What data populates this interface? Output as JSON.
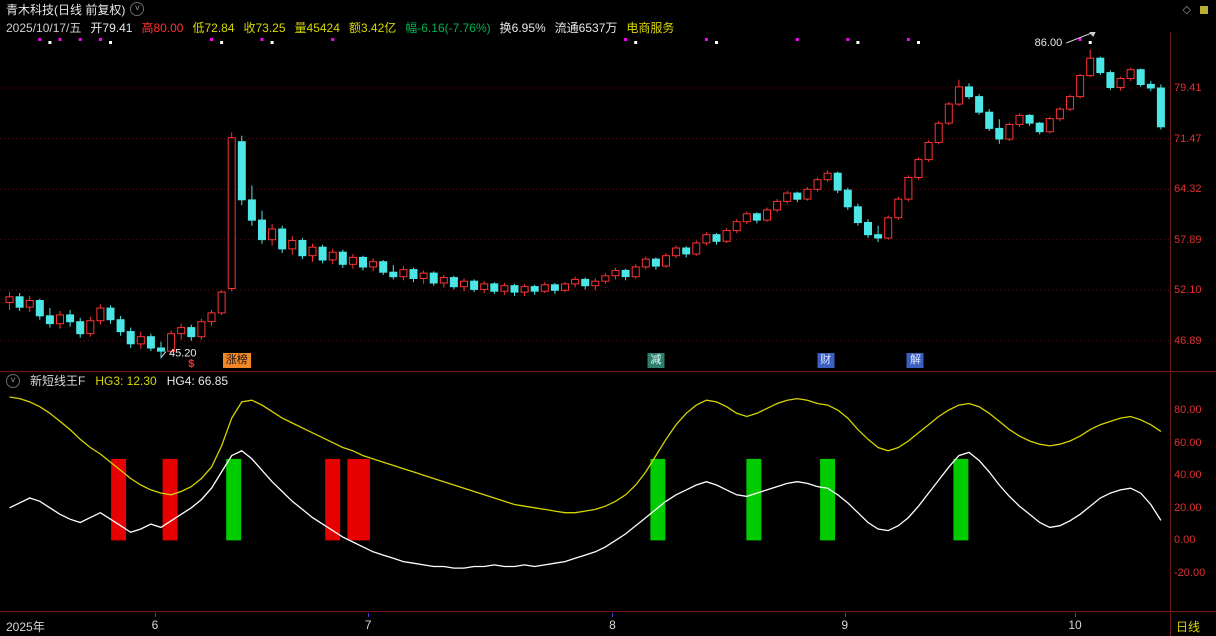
{
  "titlebar": {
    "title": "青木科技(日线 前复权)",
    "diamond_icon": "◇"
  },
  "infobar": {
    "date": "2025/10/17/五",
    "open": "开79.41",
    "high": "高80.00",
    "low": "低72.84",
    "close": "收73.25",
    "volume": "量45424",
    "amount": "额3.42亿",
    "change": "幅-6.16(-7.76%)",
    "turnover": "换6.95%",
    "float_shares": "流通6537万",
    "sector": "电商服务"
  },
  "indicator_header": {
    "name": "新短线王F",
    "hg3": "HG3: 12.30",
    "hg4": "HG4: 66.85"
  },
  "main_axis": [
    {
      "v": 79.41,
      "label": "79.41"
    },
    {
      "v": 71.47,
      "label": "71.47"
    },
    {
      "v": 64.32,
      "label": "64.32"
    },
    {
      "v": 57.89,
      "label": "57.89"
    },
    {
      "v": 52.1,
      "label": "52.10"
    },
    {
      "v": 46.89,
      "label": "46.89"
    }
  ],
  "ind_axis": [
    {
      "v": 80,
      "label": "80.00"
    },
    {
      "v": 60,
      "label": "60.00"
    },
    {
      "v": 40,
      "label": "40.00"
    },
    {
      "v": 20,
      "label": "20.00"
    },
    {
      "v": 0,
      "label": "0.00"
    },
    {
      "v": -20,
      "label": "-20.00"
    }
  ],
  "annotations": {
    "high": {
      "label": "86.00",
      "i": 107,
      "price": 86.0
    },
    "low": {
      "label": "45.20",
      "i": 15,
      "price": 45.2
    }
  },
  "events": [
    {
      "i": 18,
      "label": "$",
      "style": "dollar"
    },
    {
      "i": 22.5,
      "label": "涨榜",
      "style": "orange"
    },
    {
      "i": 64,
      "label": "减",
      "style": "teal"
    },
    {
      "i": 80.8,
      "label": "财",
      "style": "blue"
    },
    {
      "i": 89.7,
      "label": "解",
      "style": "blue"
    }
  ],
  "bottom_axis": {
    "year": "2025年",
    "months": [
      {
        "label": "6",
        "i": 14.4
      },
      {
        "label": "7",
        "i": 35.5
      },
      {
        "label": "8",
        "i": 59.7
      },
      {
        "label": "9",
        "i": 82.7
      },
      {
        "label": "10",
        "i": 105.5
      }
    ],
    "period": "日线"
  },
  "colors": {
    "up": "#ff3232",
    "down": "#4de6e6",
    "grid": "#5a1414",
    "axis_text": "#e03030",
    "yellow_line": "#d4d400",
    "white_line": "#ffffff",
    "signal_red": "#e60000",
    "signal_green": "#00cc00",
    "magenta": "#ff00ff"
  },
  "chart_data": {
    "type": "candlestick+indicator",
    "x_unit": "trading-day index, May–Oct 2025",
    "price_scale": "log",
    "candles": [
      [
        50.8,
        51.9,
        50.0,
        51.4
      ],
      [
        51.4,
        51.8,
        49.9,
        50.3
      ],
      [
        50.3,
        51.5,
        49.8,
        51.0
      ],
      [
        51.0,
        51.2,
        49.0,
        49.4
      ],
      [
        49.4,
        50.2,
        48.2,
        48.6
      ],
      [
        48.6,
        49.9,
        48.1,
        49.5
      ],
      [
        49.5,
        50.0,
        48.3,
        48.8
      ],
      [
        48.8,
        49.2,
        47.2,
        47.6
      ],
      [
        47.6,
        49.3,
        47.3,
        48.9
      ],
      [
        48.9,
        50.6,
        48.5,
        50.2
      ],
      [
        50.2,
        50.5,
        48.6,
        49.0
      ],
      [
        49.0,
        49.4,
        47.4,
        47.8
      ],
      [
        47.8,
        48.2,
        46.2,
        46.6
      ],
      [
        46.6,
        47.8,
        46.1,
        47.3
      ],
      [
        47.3,
        47.6,
        45.9,
        46.2
      ],
      [
        46.2,
        46.8,
        45.2,
        45.9
      ],
      [
        45.9,
        47.9,
        45.6,
        47.6
      ],
      [
        47.6,
        48.6,
        47.0,
        48.2
      ],
      [
        48.2,
        48.5,
        46.9,
        47.3
      ],
      [
        47.3,
        49.1,
        47.0,
        48.8
      ],
      [
        48.8,
        50.0,
        48.4,
        49.7
      ],
      [
        49.7,
        52.1,
        49.5,
        51.9
      ],
      [
        52.3,
        72.4,
        52.0,
        71.6
      ],
      [
        71.0,
        71.9,
        62.2,
        62.9
      ],
      [
        62.9,
        64.8,
        59.6,
        60.3
      ],
      [
        60.3,
        61.5,
        57.4,
        57.9
      ],
      [
        57.9,
        59.8,
        57.2,
        59.2
      ],
      [
        59.2,
        59.6,
        56.3,
        56.8
      ],
      [
        56.8,
        58.3,
        56.1,
        57.8
      ],
      [
        57.8,
        58.1,
        55.6,
        56.0
      ],
      [
        56.0,
        57.4,
        55.3,
        57.0
      ],
      [
        57.0,
        57.3,
        55.1,
        55.5
      ],
      [
        55.5,
        56.8,
        55.0,
        56.4
      ],
      [
        56.4,
        56.7,
        54.6,
        55.0
      ],
      [
        55.0,
        56.2,
        54.5,
        55.8
      ],
      [
        55.8,
        56.0,
        54.3,
        54.7
      ],
      [
        54.7,
        55.7,
        54.2,
        55.3
      ],
      [
        55.3,
        55.5,
        53.8,
        54.1
      ],
      [
        54.1,
        54.9,
        53.3,
        53.6
      ],
      [
        53.6,
        54.8,
        53.2,
        54.4
      ],
      [
        54.4,
        54.6,
        53.0,
        53.4
      ],
      [
        53.4,
        54.3,
        52.8,
        54.0
      ],
      [
        54.0,
        54.2,
        52.6,
        52.9
      ],
      [
        52.9,
        53.8,
        52.4,
        53.5
      ],
      [
        53.5,
        53.7,
        52.2,
        52.5
      ],
      [
        52.5,
        53.4,
        52.0,
        53.1
      ],
      [
        53.1,
        53.3,
        51.9,
        52.2
      ],
      [
        52.2,
        53.1,
        51.8,
        52.8
      ],
      [
        52.8,
        53.0,
        51.7,
        52.0
      ],
      [
        52.0,
        52.9,
        51.6,
        52.6
      ],
      [
        52.6,
        52.8,
        51.5,
        51.9
      ],
      [
        51.9,
        52.8,
        51.5,
        52.5
      ],
      [
        52.5,
        52.7,
        51.6,
        52.0
      ],
      [
        52.0,
        53.0,
        51.8,
        52.7
      ],
      [
        52.7,
        52.9,
        51.7,
        52.1
      ],
      [
        52.1,
        53.0,
        51.9,
        52.8
      ],
      [
        52.8,
        53.6,
        52.4,
        53.3
      ],
      [
        53.3,
        53.5,
        52.2,
        52.6
      ],
      [
        52.6,
        53.4,
        52.1,
        53.1
      ],
      [
        53.1,
        54.0,
        52.8,
        53.7
      ],
      [
        53.7,
        54.6,
        53.3,
        54.3
      ],
      [
        54.3,
        54.5,
        53.2,
        53.6
      ],
      [
        53.6,
        55.0,
        53.4,
        54.7
      ],
      [
        54.7,
        55.9,
        54.4,
        55.6
      ],
      [
        55.6,
        55.8,
        54.4,
        54.8
      ],
      [
        54.8,
        56.3,
        54.6,
        56.0
      ],
      [
        56.0,
        57.2,
        55.7,
        56.9
      ],
      [
        56.9,
        57.1,
        55.8,
        56.2
      ],
      [
        56.2,
        57.8,
        56.0,
        57.5
      ],
      [
        57.5,
        58.8,
        57.2,
        58.5
      ],
      [
        58.5,
        58.7,
        57.3,
        57.7
      ],
      [
        57.7,
        59.3,
        57.5,
        59.0
      ],
      [
        59.0,
        60.4,
        58.7,
        60.1
      ],
      [
        60.1,
        61.4,
        59.8,
        61.1
      ],
      [
        61.1,
        61.3,
        59.9,
        60.3
      ],
      [
        60.3,
        61.9,
        60.1,
        61.6
      ],
      [
        61.6,
        63.0,
        61.3,
        62.7
      ],
      [
        62.7,
        64.1,
        62.4,
        63.8
      ],
      [
        63.8,
        64.0,
        62.6,
        63.0
      ],
      [
        63.0,
        64.6,
        62.8,
        64.3
      ],
      [
        64.3,
        65.9,
        64.0,
        65.6
      ],
      [
        65.6,
        66.9,
        65.3,
        66.5
      ],
      [
        66.5,
        66.7,
        63.8,
        64.2
      ],
      [
        64.2,
        64.5,
        61.6,
        62.0
      ],
      [
        62.0,
        62.4,
        59.6,
        60.0
      ],
      [
        60.0,
        60.4,
        58.1,
        58.5
      ],
      [
        58.5,
        59.6,
        57.6,
        58.1
      ],
      [
        58.1,
        60.9,
        57.9,
        60.6
      ],
      [
        60.6,
        63.3,
        60.3,
        63.0
      ],
      [
        63.0,
        66.2,
        62.7,
        65.9
      ],
      [
        65.9,
        68.7,
        65.6,
        68.4
      ],
      [
        68.4,
        71.2,
        68.1,
        70.9
      ],
      [
        70.9,
        74.1,
        70.6,
        73.8
      ],
      [
        73.8,
        77.1,
        73.5,
        76.8
      ],
      [
        76.8,
        80.8,
        76.5,
        79.6
      ],
      [
        79.6,
        80.2,
        77.6,
        78.0
      ],
      [
        78.0,
        78.4,
        75.1,
        75.5
      ],
      [
        75.5,
        76.0,
        72.6,
        73.0
      ],
      [
        73.0,
        74.4,
        70.7,
        71.4
      ],
      [
        71.4,
        73.9,
        71.1,
        73.6
      ],
      [
        73.6,
        75.3,
        73.2,
        75.0
      ],
      [
        75.0,
        75.2,
        73.4,
        73.8
      ],
      [
        73.8,
        74.0,
        72.1,
        72.5
      ],
      [
        72.5,
        74.8,
        72.2,
        74.5
      ],
      [
        74.5,
        76.3,
        74.1,
        76.0
      ],
      [
        76.0,
        78.3,
        75.7,
        78.0
      ],
      [
        78.0,
        81.8,
        77.7,
        81.5
      ],
      [
        81.5,
        86.0,
        81.2,
        84.5
      ],
      [
        84.5,
        84.8,
        81.6,
        82.0
      ],
      [
        82.0,
        82.4,
        79.1,
        79.5
      ],
      [
        79.5,
        81.3,
        79.0,
        81.0
      ],
      [
        81.0,
        82.8,
        80.6,
        82.5
      ],
      [
        82.5,
        82.7,
        79.6,
        80.0
      ],
      [
        80.0,
        80.6,
        78.9,
        79.4
      ],
      [
        79.41,
        80.0,
        72.84,
        73.25
      ]
    ],
    "hg4_yellow": [
      88,
      87,
      85,
      82,
      78,
      73,
      68,
      62,
      57,
      53,
      48,
      43,
      38,
      34,
      31,
      29,
      28,
      30,
      33,
      38,
      45,
      58,
      75,
      85,
      86,
      83,
      79,
      75,
      72,
      69,
      66,
      63,
      60,
      57,
      55,
      52,
      50,
      48,
      46,
      44,
      42,
      40,
      38,
      36,
      34,
      32,
      30,
      28,
      26,
      24,
      22,
      21,
      20,
      19,
      18,
      17,
      17,
      18,
      19,
      21,
      24,
      28,
      34,
      42,
      52,
      62,
      71,
      78,
      83,
      86,
      85,
      82,
      78,
      76,
      78,
      81,
      84,
      86,
      87,
      86,
      84,
      83,
      80,
      75,
      68,
      62,
      57,
      55,
      57,
      61,
      66,
      71,
      76,
      80,
      83,
      84,
      82,
      78,
      73,
      68,
      64,
      61,
      59,
      58,
      59,
      61,
      64,
      68,
      71,
      73,
      75,
      76,
      74,
      71,
      66.85
    ],
    "hg3_white": [
      20,
      23,
      26,
      24,
      20,
      16,
      13,
      11,
      14,
      17,
      13,
      9,
      5,
      7,
      10,
      8,
      12,
      16,
      20,
      25,
      32,
      42,
      52,
      55,
      50,
      43,
      36,
      30,
      24,
      19,
      14,
      10,
      6,
      2,
      -1,
      -4,
      -7,
      -9,
      -11,
      -13,
      -14,
      -15,
      -16,
      -16,
      -17,
      -17,
      -16,
      -16,
      -15,
      -16,
      -16,
      -15,
      -16,
      -15,
      -14,
      -13,
      -11,
      -9,
      -7,
      -4,
      0,
      4,
      9,
      14,
      19,
      24,
      28,
      31,
      34,
      36,
      34,
      31,
      28,
      27,
      29,
      31,
      33,
      35,
      36,
      35,
      33,
      32,
      28,
      23,
      17,
      11,
      7,
      6,
      9,
      14,
      21,
      29,
      37,
      45,
      52,
      54,
      49,
      42,
      34,
      27,
      21,
      16,
      11,
      8,
      9,
      12,
      16,
      21,
      26,
      29,
      31,
      32,
      29,
      22,
      12.3
    ],
    "signals": [
      {
        "i": 10.6,
        "span": 2,
        "color": "red"
      },
      {
        "i": 15.7,
        "span": 2,
        "color": "red"
      },
      {
        "i": 22.0,
        "span": 2,
        "color": "green"
      },
      {
        "i": 31.8,
        "span": 2,
        "color": "red"
      },
      {
        "i": 34.0,
        "span": 3,
        "color": "red"
      },
      {
        "i": 64.0,
        "span": 2,
        "color": "green"
      },
      {
        "i": 73.5,
        "span": 2,
        "color": "green"
      },
      {
        "i": 80.8,
        "span": 2,
        "color": "green"
      },
      {
        "i": 94.0,
        "span": 2,
        "color": "green"
      }
    ],
    "signal_bar_value_range": [
      0,
      50
    ],
    "dots": {
      "magenta": [
        3,
        5,
        7,
        9,
        20,
        25,
        32,
        61,
        69,
        78,
        83,
        89,
        106
      ],
      "white": [
        4,
        10,
        21,
        26,
        62,
        70,
        84,
        90,
        107
      ]
    }
  }
}
